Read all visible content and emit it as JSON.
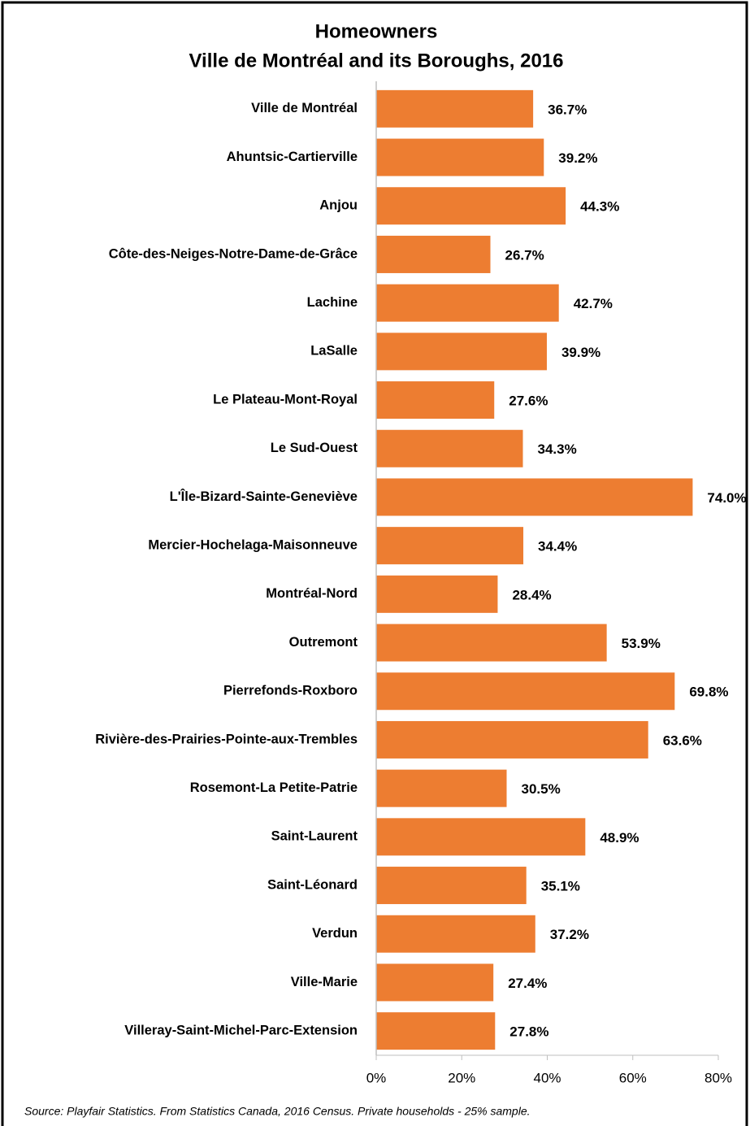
{
  "chart_data": {
    "type": "barh",
    "title": "Homeowners",
    "subtitle": "Ville de Montréal and its Boroughs, 2016",
    "source": "Source: Playfair Statistics. From Statistics Canada, 2016 Census. Private households - 25% sample.",
    "categories": [
      "Ville de Montréal",
      "Ahuntsic-Cartierville",
      "Anjou",
      "Côte-des-Neiges-Notre-Dame-de-Grâce",
      "Lachine",
      "LaSalle",
      "Le Plateau-Mont-Royal",
      "Le Sud-Ouest",
      "L'Île-Bizard-Sainte-Geneviève",
      "Mercier-Hochelaga-Maisonneuve",
      "Montréal-Nord",
      "Outremont",
      "Pierrefonds-Roxboro",
      "Rivière-des-Prairies-Pointe-aux-Trembles",
      "Rosemont-La Petite-Patrie",
      "Saint-Laurent",
      "Saint-Léonard",
      "Verdun",
      "Ville-Marie",
      "Villeray-Saint-Michel-Parc-Extension"
    ],
    "values": [
      36.7,
      39.2,
      44.3,
      26.7,
      42.7,
      39.9,
      27.6,
      34.3,
      74.0,
      34.4,
      28.4,
      53.9,
      69.8,
      63.6,
      30.5,
      48.9,
      35.1,
      37.2,
      27.4,
      27.8
    ],
    "value_labels": [
      "36.7%",
      "39.2%",
      "44.3%",
      "26.7%",
      "42.7%",
      "39.9%",
      "27.6%",
      "34.3%",
      "74.0%",
      "34.4%",
      "28.4%",
      "53.9%",
      "69.8%",
      "63.6%",
      "30.5%",
      "48.9%",
      "35.1%",
      "37.2%",
      "27.4%",
      "27.8%"
    ],
    "color": "#ed7d31",
    "xlim": [
      0,
      80
    ],
    "xticks": [
      {
        "value": 0,
        "label": "0%"
      },
      {
        "value": 20,
        "label": "20%"
      },
      {
        "value": 40,
        "label": "40%"
      },
      {
        "value": 60,
        "label": "60%"
      },
      {
        "value": 80,
        "label": "80%"
      }
    ],
    "grid": false
  }
}
